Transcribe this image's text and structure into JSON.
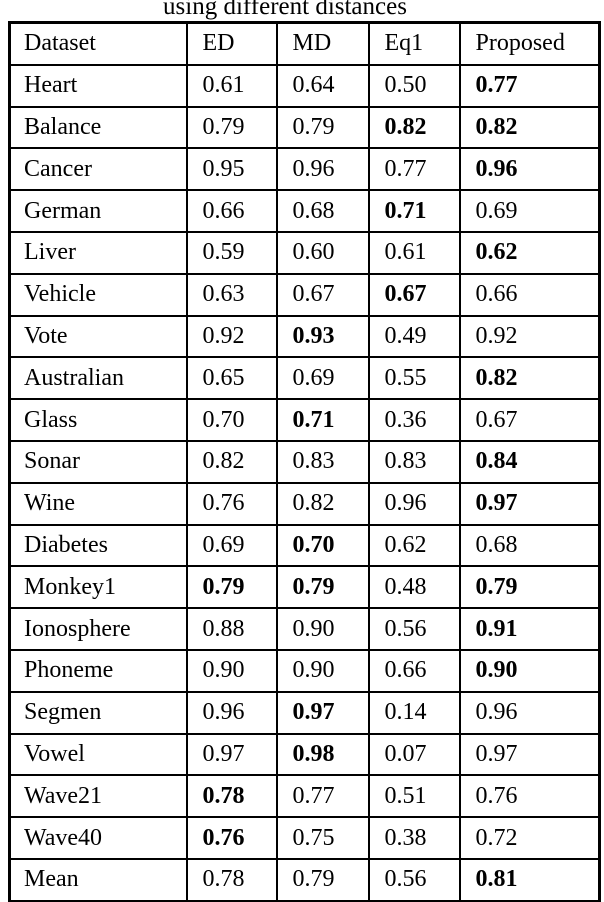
{
  "caption": "using different distances",
  "table": {
    "headers": [
      "Dataset",
      "ED",
      "MD",
      "Eq1",
      "Proposed"
    ],
    "rows": [
      {
        "dataset": "Heart",
        "values": [
          "0.61",
          "0.64",
          "0.50",
          "0.77"
        ],
        "bold": [
          false,
          false,
          false,
          true
        ]
      },
      {
        "dataset": "Balance",
        "values": [
          "0.79",
          "0.79",
          "0.82",
          "0.82"
        ],
        "bold": [
          false,
          false,
          true,
          true
        ]
      },
      {
        "dataset": "Cancer",
        "values": [
          "0.95",
          "0.96",
          "0.77",
          "0.96"
        ],
        "bold": [
          false,
          false,
          false,
          true
        ]
      },
      {
        "dataset": "German",
        "values": [
          "0.66",
          "0.68",
          "0.71",
          "0.69"
        ],
        "bold": [
          false,
          false,
          true,
          false
        ]
      },
      {
        "dataset": "Liver",
        "values": [
          "0.59",
          "0.60",
          "0.61",
          "0.62"
        ],
        "bold": [
          false,
          false,
          false,
          true
        ]
      },
      {
        "dataset": "Vehicle",
        "values": [
          "0.63",
          "0.67",
          "0.67",
          "0.66"
        ],
        "bold": [
          false,
          false,
          true,
          false
        ]
      },
      {
        "dataset": "Vote",
        "values": [
          "0.92",
          "0.93",
          "0.49",
          "0.92"
        ],
        "bold": [
          false,
          true,
          false,
          false
        ]
      },
      {
        "dataset": "Australian",
        "values": [
          "0.65",
          "0.69",
          "0.55",
          "0.82"
        ],
        "bold": [
          false,
          false,
          false,
          true
        ]
      },
      {
        "dataset": "Glass",
        "values": [
          "0.70",
          "0.71",
          "0.36",
          "0.67"
        ],
        "bold": [
          false,
          true,
          false,
          false
        ]
      },
      {
        "dataset": "Sonar",
        "values": [
          "0.82",
          "0.83",
          "0.83",
          "0.84"
        ],
        "bold": [
          false,
          false,
          false,
          true
        ]
      },
      {
        "dataset": "Wine",
        "values": [
          "0.76",
          "0.82",
          "0.96",
          "0.97"
        ],
        "bold": [
          false,
          false,
          false,
          true
        ]
      },
      {
        "dataset": "Diabetes",
        "values": [
          "0.69",
          "0.70",
          "0.62",
          "0.68"
        ],
        "bold": [
          false,
          true,
          false,
          false
        ]
      },
      {
        "dataset": "Monkey1",
        "values": [
          "0.79",
          "0.79",
          "0.48",
          "0.79"
        ],
        "bold": [
          true,
          true,
          false,
          true
        ]
      },
      {
        "dataset": "Ionosphere",
        "values": [
          "0.88",
          "0.90",
          "0.56",
          "0.91"
        ],
        "bold": [
          false,
          false,
          false,
          true
        ]
      },
      {
        "dataset": "Phoneme",
        "values": [
          "0.90",
          "0.90",
          "0.66",
          "0.90"
        ],
        "bold": [
          false,
          false,
          false,
          true
        ]
      },
      {
        "dataset": "Segmen",
        "values": [
          "0.96",
          "0.97",
          "0.14",
          "0.96"
        ],
        "bold": [
          false,
          true,
          false,
          false
        ]
      },
      {
        "dataset": "Vowel",
        "values": [
          "0.97",
          "0.98",
          "0.07",
          "0.97"
        ],
        "bold": [
          false,
          true,
          false,
          false
        ]
      },
      {
        "dataset": "Wave21",
        "values": [
          "0.78",
          "0.77",
          "0.51",
          "0.76"
        ],
        "bold": [
          true,
          false,
          false,
          false
        ]
      },
      {
        "dataset": "Wave40",
        "values": [
          "0.76",
          "0.75",
          "0.38",
          "0.72"
        ],
        "bold": [
          true,
          false,
          false,
          false
        ]
      },
      {
        "dataset": "Mean",
        "values": [
          "0.78",
          "0.79",
          "0.56",
          "0.81"
        ],
        "bold": [
          false,
          false,
          false,
          true
        ]
      }
    ]
  }
}
